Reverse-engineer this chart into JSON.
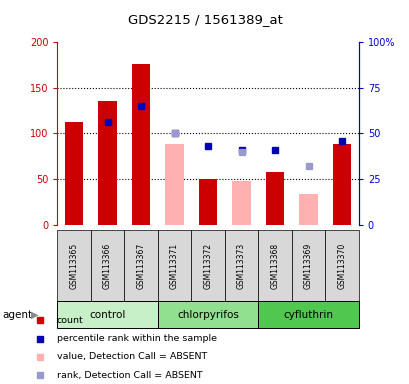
{
  "title": "GDS2215 / 1561389_at",
  "samples": [
    "GSM113365",
    "GSM113366",
    "GSM113367",
    "GSM113371",
    "GSM113372",
    "GSM113373",
    "GSM113368",
    "GSM113369",
    "GSM113370"
  ],
  "groups": [
    {
      "name": "control",
      "indices": [
        0,
        1,
        2
      ],
      "color": "#c8f0c8"
    },
    {
      "name": "chlorpyrifos",
      "indices": [
        3,
        4,
        5
      ],
      "color": "#90e090"
    },
    {
      "name": "cyfluthrin",
      "indices": [
        6,
        7,
        8
      ],
      "color": "#50c850"
    }
  ],
  "red_bars": [
    112,
    136,
    176,
    null,
    50,
    null,
    58,
    null,
    88
  ],
  "pink_bars": [
    null,
    null,
    null,
    88,
    null,
    48,
    null,
    34,
    null
  ],
  "blue_squares_right": [
    null,
    56,
    65,
    50,
    43,
    41,
    41,
    null,
    46
  ],
  "lavender_squares_right": [
    null,
    null,
    null,
    50,
    null,
    40,
    null,
    32,
    null
  ],
  "ylim_left": [
    0,
    200
  ],
  "ylim_right": [
    0,
    100
  ],
  "yticks_left": [
    0,
    50,
    100,
    150,
    200
  ],
  "yticks_right": [
    0,
    25,
    50,
    75,
    100
  ],
  "ytick_labels_left": [
    "0",
    "50",
    "100",
    "150",
    "200"
  ],
  "ytick_labels_right": [
    "0",
    "25",
    "50",
    "75",
    "100%"
  ],
  "left_axis_color": "#cc0000",
  "right_axis_color": "#0000cc",
  "red_bar_color": "#cc0000",
  "pink_bar_color": "#ffb0b0",
  "blue_square_color": "#0000bb",
  "lavender_square_color": "#9999cc",
  "background_color": "#d8d8d8",
  "plot_bg": "#ffffff",
  "legend_items": [
    {
      "label": "count",
      "color": "#cc0000"
    },
    {
      "label": "percentile rank within the sample",
      "color": "#0000bb"
    },
    {
      "label": "value, Detection Call = ABSENT",
      "color": "#ffb0b0"
    },
    {
      "label": "rank, Detection Call = ABSENT",
      "color": "#9999cc"
    }
  ]
}
